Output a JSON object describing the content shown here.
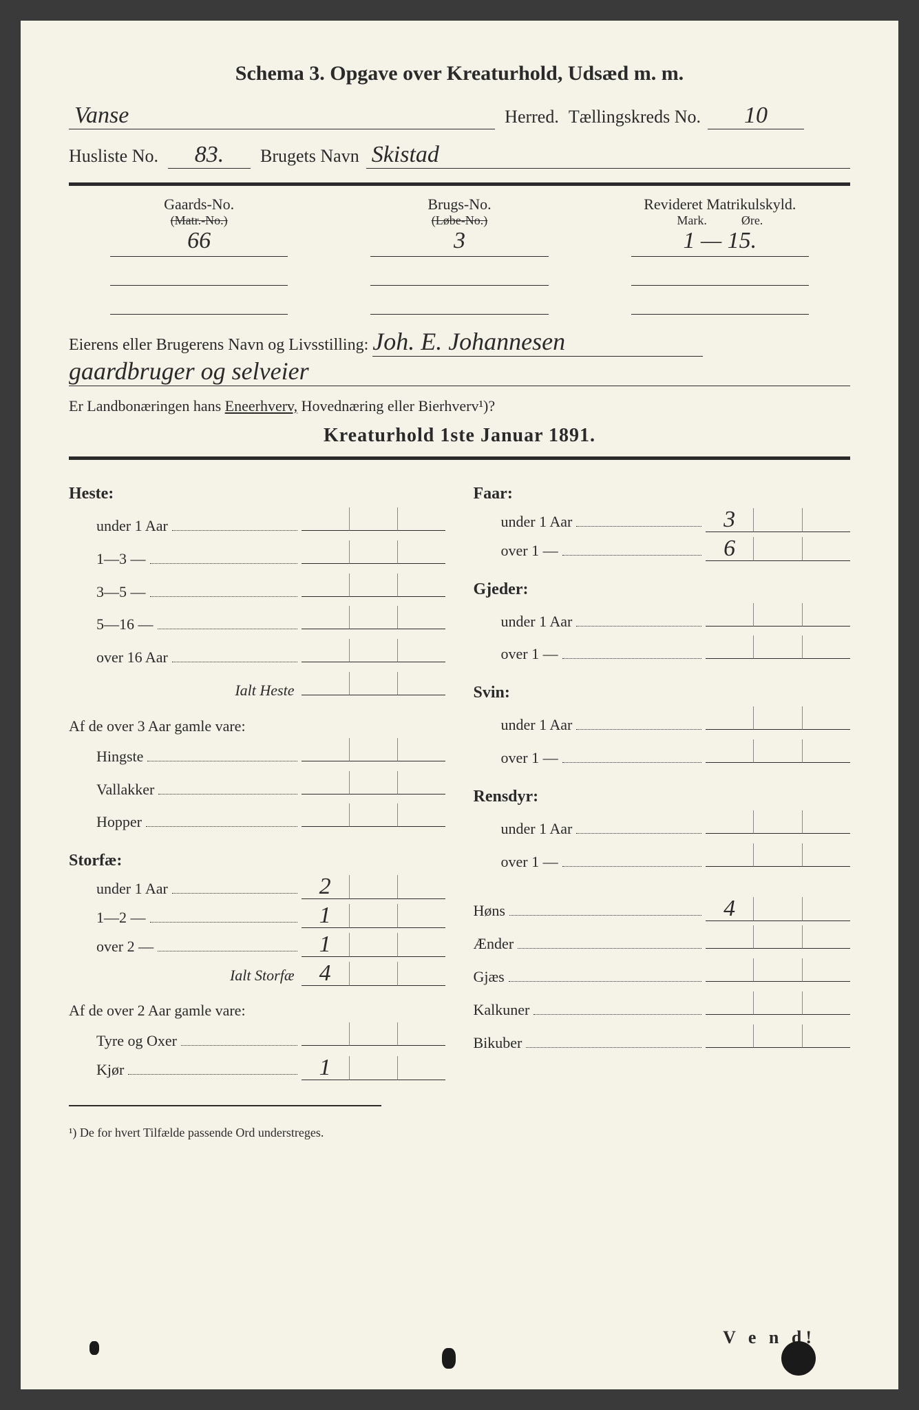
{
  "title": "Schema 3.  Opgave over Kreaturhold, Udsæd m. m.",
  "herred_label": "Herred.",
  "herred_value": "Vanse",
  "taellingskreds_label": "Tællingskreds No.",
  "taellingskreds_value": "10",
  "husliste_label": "Husliste No.",
  "husliste_value": "83.",
  "brugets_navn_label": "Brugets Navn",
  "brugets_navn_value": "Skistad",
  "gaards_no_label": "Gaards-No.",
  "gaards_no_strike": "(Matr.-No.)",
  "gaards_no_value": "66",
  "brugs_no_label": "Brugs-No.",
  "brugs_no_strike": "(Løbe-No.)",
  "brugs_no_value": "3",
  "matrikul_label": "Revideret Matrikulskyld.",
  "matrikul_mark": "Mark.",
  "matrikul_ore": "Øre.",
  "matrikul_value": "1 — 15.",
  "owner_label": "Eierens eller Brugerens Navn og Livsstilling:",
  "owner_value_1": "Joh. E. Johannesen",
  "owner_value_2": "gaardbruger og selveier",
  "landbo_line_pre": "Er Landbonæringen hans",
  "landbo_underlined": "Eneerhverv,",
  "landbo_line_post": "Hovednæring eller Bierhverv¹)?",
  "kreaturhold_header": "Kreaturhold 1ste Januar 1891.",
  "left_sections": [
    {
      "label": "Heste:",
      "rows": [
        {
          "label": "under 1 Aar",
          "v": [
            "",
            "",
            ""
          ]
        },
        {
          "label": "1—3   —",
          "v": [
            "",
            "",
            ""
          ]
        },
        {
          "label": "3—5   —",
          "v": [
            "",
            "",
            ""
          ]
        },
        {
          "label": "5—16  —",
          "v": [
            "",
            "",
            ""
          ]
        },
        {
          "label": "over 16 Aar",
          "v": [
            "",
            "",
            ""
          ]
        }
      ],
      "total_label": "Ialt Heste",
      "total": [
        "",
        "",
        ""
      ],
      "sub_header": "Af de over 3 Aar gamle vare:",
      "sub_rows": [
        {
          "label": "Hingste",
          "v": [
            "",
            "",
            ""
          ]
        },
        {
          "label": "Vallakker",
          "v": [
            "",
            "",
            ""
          ]
        },
        {
          "label": "Hopper",
          "v": [
            "",
            "",
            ""
          ]
        }
      ]
    },
    {
      "label": "Storfæ:",
      "rows": [
        {
          "label": "under 1 Aar",
          "v": [
            "2",
            "",
            ""
          ]
        },
        {
          "label": "1—2   —",
          "v": [
            "1",
            "",
            ""
          ]
        },
        {
          "label": "over 2   —",
          "v": [
            "1",
            "",
            ""
          ]
        }
      ],
      "total_label": "Ialt Storfæ",
      "total": [
        "4",
        "",
        ""
      ],
      "sub_header": "Af de over 2 Aar gamle vare:",
      "sub_rows": [
        {
          "label": "Tyre og Oxer",
          "v": [
            "",
            "",
            ""
          ]
        },
        {
          "label": "Kjør",
          "v": [
            "1",
            "",
            ""
          ]
        }
      ]
    }
  ],
  "right_sections": [
    {
      "label": "Faar:",
      "rows": [
        {
          "label": "under 1 Aar",
          "v": [
            "3",
            "",
            ""
          ]
        },
        {
          "label": "over 1   —",
          "v": [
            "6",
            "",
            ""
          ]
        }
      ]
    },
    {
      "label": "Gjeder:",
      "rows": [
        {
          "label": "under 1 Aar",
          "v": [
            "",
            "",
            ""
          ]
        },
        {
          "label": "over 1   —",
          "v": [
            "",
            "",
            ""
          ]
        }
      ]
    },
    {
      "label": "Svin:",
      "rows": [
        {
          "label": "under 1 Aar",
          "v": [
            "",
            "",
            ""
          ]
        },
        {
          "label": "over 1   —",
          "v": [
            "",
            "",
            ""
          ]
        }
      ]
    },
    {
      "label": "Rensdyr:",
      "rows": [
        {
          "label": "under 1 Aar",
          "v": [
            "",
            "",
            ""
          ]
        },
        {
          "label": "over 1   —",
          "v": [
            "",
            "",
            ""
          ]
        }
      ]
    }
  ],
  "right_simple": [
    {
      "label": "Høns",
      "v": [
        "4",
        "",
        ""
      ]
    },
    {
      "label": "Ænder",
      "v": [
        "",
        "",
        ""
      ]
    },
    {
      "label": "Gjæs",
      "v": [
        "",
        "",
        ""
      ]
    },
    {
      "label": "Kalkuner",
      "v": [
        "",
        "",
        ""
      ]
    },
    {
      "label": "Bikuber",
      "v": [
        "",
        "",
        ""
      ]
    }
  ],
  "footnote": "¹) De for hvert Tilfælde passende Ord understreges.",
  "vend": "V e n d!"
}
